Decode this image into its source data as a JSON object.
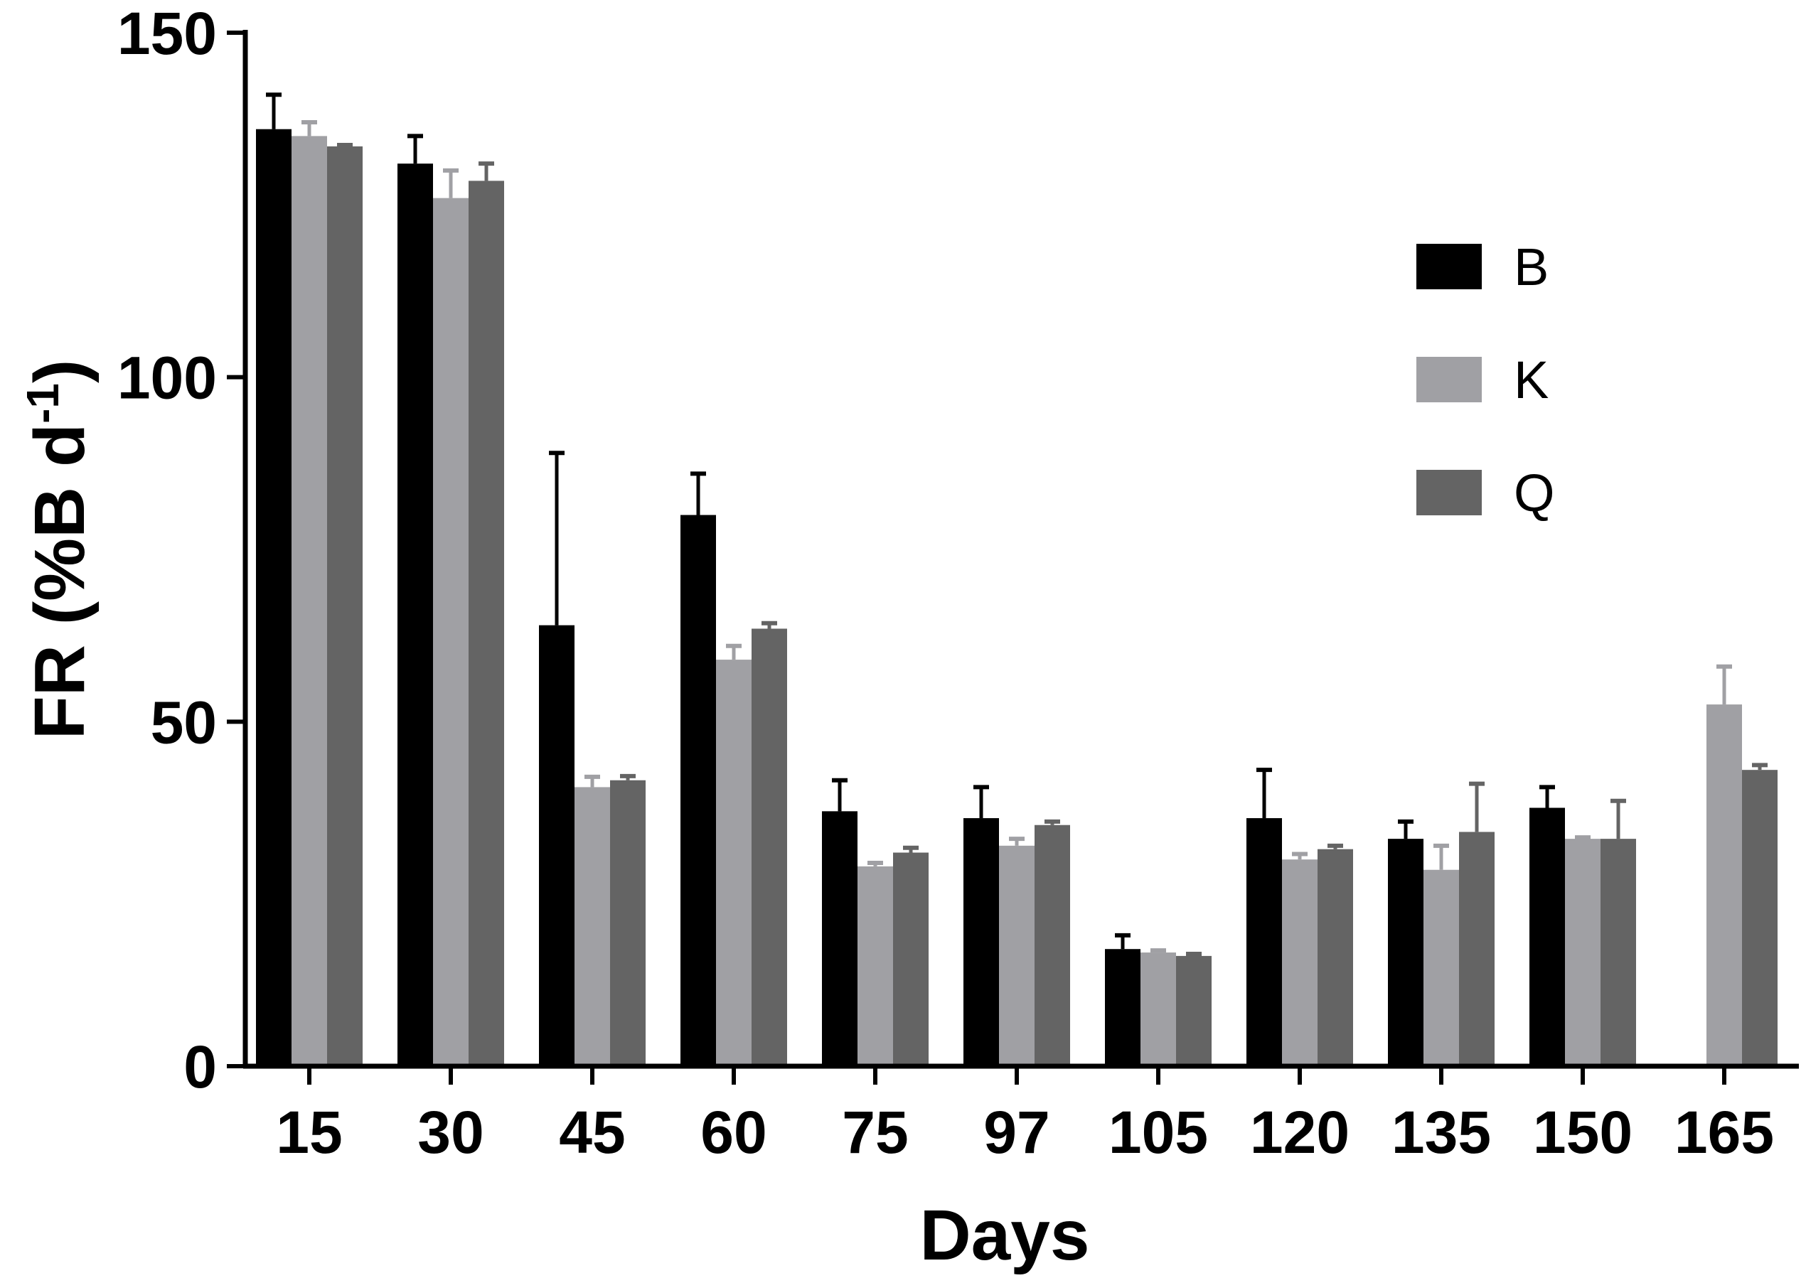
{
  "chart_data": {
    "type": "bar",
    "title": "",
    "xlabel": "Days",
    "ylabel": {
      "main": "FR (%B d",
      "sup": "-1",
      "close": ")"
    },
    "ylim": [
      0,
      150
    ],
    "yticks": [
      0,
      50,
      100,
      150
    ],
    "categories": [
      "15",
      "30",
      "45",
      "60",
      "75",
      "97",
      "105",
      "120",
      "135",
      "150",
      "165"
    ],
    "series": [
      {
        "name": "B",
        "color": "#000000",
        "values": [
          136,
          131,
          64,
          80,
          37,
          36,
          17,
          36,
          33,
          37.5,
          null
        ],
        "errors": [
          5,
          4,
          25,
          6,
          4.5,
          4.5,
          2,
          7,
          2.5,
          3,
          null
        ]
      },
      {
        "name": "K",
        "color": "#a0a0a4",
        "values": [
          135,
          126,
          40.5,
          59,
          29,
          32,
          16.5,
          30,
          28.5,
          33,
          52.5
        ],
        "errors": [
          2,
          4,
          1.5,
          2,
          0.5,
          1,
          0.3,
          0.8,
          3.5,
          0.2,
          5.5
        ]
      },
      {
        "name": "Q",
        "color": "#646464",
        "values": [
          133.5,
          128.5,
          41.5,
          63.5,
          31,
          35,
          16,
          31.5,
          34,
          33,
          43
        ],
        "errors": [
          0.2,
          2.5,
          0.6,
          0.8,
          0.7,
          0.5,
          0.3,
          0.5,
          7,
          5.5,
          0.7
        ]
      }
    ],
    "legend": "top-right",
    "grid": false
  }
}
